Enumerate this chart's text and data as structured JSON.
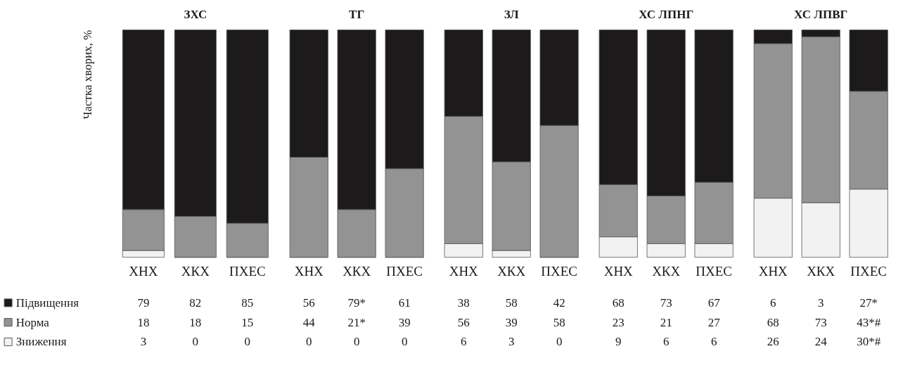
{
  "chart_data": [
    {
      "type": "bar",
      "stacked": true,
      "title": "ЗХС",
      "ylabel": "Частка хворих, %",
      "categories": [
        "ХНХ",
        "ХКХ",
        "ПХЕС"
      ],
      "legend": "bottom left",
      "tick_labels": "x",
      "series": [
        {
          "name": "Зниження",
          "color": "#f2f2f2",
          "values": [
            3,
            0,
            0
          ],
          "value_labels": [
            "3",
            "0",
            "0"
          ]
        },
        {
          "name": "Норма",
          "color": "#939393",
          "values": [
            18,
            18,
            15
          ],
          "value_labels": [
            "18",
            "18",
            "15"
          ]
        },
        {
          "name": "Підвищення",
          "color": "#1c1a1b",
          "values": [
            79,
            82,
            85
          ],
          "value_labels": [
            "79",
            "82",
            "85"
          ]
        }
      ]
    },
    {
      "type": "bar",
      "stacked": true,
      "title": "ТГ",
      "categories": [
        "ХНХ",
        "ХКХ",
        "ПХЕС"
      ],
      "tick_labels": "x",
      "series": [
        {
          "color": "#f2f2f2",
          "values": [
            0,
            0,
            0
          ],
          "value_labels": [
            "0",
            "0",
            "0"
          ]
        },
        {
          "color": "#939393",
          "values": [
            44,
            21,
            39
          ],
          "value_labels": [
            "44",
            "21*",
            "39"
          ]
        },
        {
          "color": "#1c1a1b",
          "values": [
            56,
            79,
            61
          ],
          "value_labels": [
            "56",
            "79*",
            "61"
          ]
        }
      ]
    },
    {
      "type": "bar",
      "stacked": true,
      "title": "ЗЛ",
      "categories": [
        "ХНХ",
        "ХКХ",
        "ПХЕС"
      ],
      "tick_labels": "x",
      "series": [
        {
          "color": "#f2f2f2",
          "values": [
            6,
            3,
            0
          ],
          "value_labels": [
            "6",
            "3",
            "0"
          ]
        },
        {
          "color": "#939393",
          "values": [
            56,
            39,
            58
          ],
          "value_labels": [
            "56",
            "39",
            "58"
          ]
        },
        {
          "color": "#1c1a1b",
          "values": [
            38,
            58,
            42
          ],
          "value_labels": [
            "38",
            "58",
            "42"
          ]
        }
      ]
    },
    {
      "type": "bar",
      "stacked": true,
      "title": "ХС ЛПНГ",
      "categories": [
        "ХНХ",
        "ХКХ",
        "ПХЕС"
      ],
      "tick_labels": "x",
      "series": [
        {
          "color": "#f2f2f2",
          "values": [
            9,
            6,
            6
          ],
          "value_labels": [
            "9",
            "6",
            "6"
          ]
        },
        {
          "color": "#939393",
          "values": [
            23,
            21,
            27
          ],
          "value_labels": [
            "23",
            "21",
            "27"
          ]
        },
        {
          "color": "#1c1a1b",
          "values": [
            68,
            73,
            67
          ],
          "value_labels": [
            "68",
            "73",
            "67"
          ]
        }
      ]
    },
    {
      "type": "bar",
      "stacked": true,
      "title": "ХС ЛПВГ",
      "categories": [
        "ХНХ",
        "ХКХ",
        "ПХЕС"
      ],
      "tick_labels": "x",
      "series": [
        {
          "color": "#f2f2f2",
          "values": [
            26,
            24,
            30
          ],
          "value_labels": [
            "26",
            "24",
            "30*#"
          ]
        },
        {
          "color": "#939393",
          "values": [
            68,
            73,
            43
          ],
          "value_labels": [
            "68",
            "73",
            "43*#"
          ]
        },
        {
          "color": "#1c1a1b",
          "values": [
            6,
            3,
            27
          ],
          "value_labels": [
            "6",
            "3",
            "27*"
          ]
        }
      ]
    }
  ]
}
